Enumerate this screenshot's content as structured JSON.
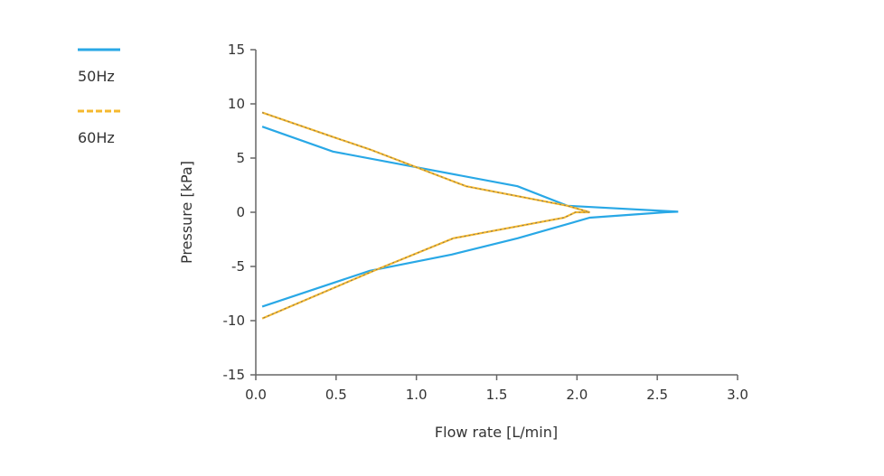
{
  "chart_data": {
    "type": "line",
    "xlabel": "Flow rate [L/min]",
    "ylabel": "Pressure [kPa]",
    "xlim": [
      0,
      3.0
    ],
    "ylim": [
      -15,
      15
    ],
    "xticks": [
      "0.0",
      "0.5",
      "1.0",
      "1.5",
      "2.0",
      "2.5",
      "3.0"
    ],
    "yticks": [
      "15",
      "10",
      "5",
      "0",
      "-5",
      "-10",
      "-15"
    ],
    "grid": false,
    "legend_position": "top-left",
    "series": [
      {
        "name": "50Hz",
        "color": "#29a8e6",
        "style": "solid",
        "points": [
          [
            0.04,
            7.9
          ],
          [
            0.48,
            5.6
          ],
          [
            1.63,
            2.4
          ],
          [
            1.94,
            0.6
          ],
          [
            2.63,
            0.05
          ],
          [
            2.55,
            0
          ],
          [
            2.08,
            -0.5
          ],
          [
            1.63,
            -2.4
          ],
          [
            1.22,
            -3.9
          ],
          [
            0.71,
            -5.4
          ],
          [
            0.04,
            -8.7
          ]
        ]
      },
      {
        "name": "60Hz",
        "color": "#f5b82e",
        "style": "dashed",
        "points": [
          [
            0.04,
            9.2
          ],
          [
            0.49,
            6.9
          ],
          [
            0.71,
            5.8
          ],
          [
            1.31,
            2.4
          ],
          [
            1.94,
            0.6
          ],
          [
            2.08,
            0
          ],
          [
            1.99,
            0
          ],
          [
            1.92,
            -0.5
          ],
          [
            1.23,
            -2.4
          ],
          [
            0.75,
            -5.3
          ],
          [
            0.04,
            -9.8
          ]
        ]
      }
    ]
  }
}
